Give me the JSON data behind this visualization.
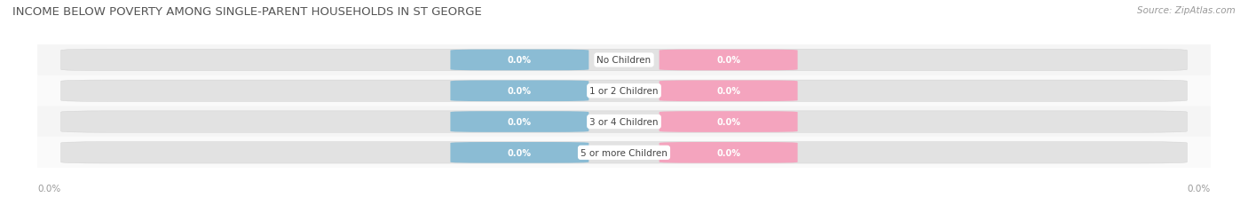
{
  "title": "INCOME BELOW POVERTY AMONG SINGLE-PARENT HOUSEHOLDS IN ST GEORGE",
  "source": "Source: ZipAtlas.com",
  "categories": [
    "No Children",
    "1 or 2 Children",
    "3 or 4 Children",
    "5 or more Children"
  ],
  "father_values": [
    0.0,
    0.0,
    0.0,
    0.0
  ],
  "mother_values": [
    0.0,
    0.0,
    0.0,
    0.0
  ],
  "father_color": "#8bbcd4",
  "mother_color": "#f4a4be",
  "bar_bg_light": "#ececec",
  "bar_bg_dark": "#e0e0e0",
  "row_bg_even": "#f5f5f5",
  "row_bg_odd": "#fafafa",
  "title_fontsize": 9.5,
  "source_fontsize": 7.5,
  "label_fontsize": 7.5,
  "value_fontsize": 7.0,
  "legend_fontsize": 8.0,
  "background_color": "#ffffff",
  "axis_label_color": "#999999",
  "label_text_color": "#444444",
  "value_text_color": "#ffffff"
}
